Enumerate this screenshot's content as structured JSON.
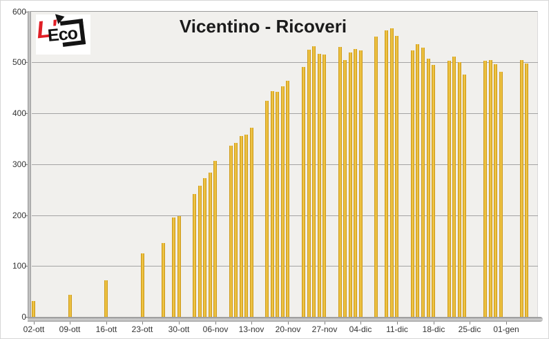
{
  "logo": {
    "prefix": "L'",
    "name": "Eco"
  },
  "colors": {
    "bar_gold": "#e8b32a",
    "bar_gold_light": "#f6d15a",
    "bar_gold_dark": "#c3921b",
    "plot_background": "#f1f0ed",
    "gridline": "#a3a3a3",
    "axis_wall": "#9a9a9a",
    "axis_text": "#333333",
    "title_text": "#1b1b1b",
    "logo_red": "#e01f26",
    "logo_black": "#141414"
  },
  "chart_data": {
    "type": "bar",
    "title": "Vicentino - Ricoveri",
    "xlabel": "",
    "ylabel": "",
    "ylim": [
      0,
      600
    ],
    "y_ticks": [
      0,
      100,
      200,
      300,
      400,
      500,
      600
    ],
    "x_tick_labels": [
      "02-ott",
      "09-ott",
      "16-ott",
      "23-ott",
      "30-ott",
      "06-nov",
      "13-nov",
      "20-nov",
      "27-nov",
      "04-dic",
      "11-dic",
      "18-dic",
      "25-dic",
      "01-gen"
    ],
    "grid": "horizontal",
    "legend_position": "none",
    "points": [
      {
        "date": "02-ott",
        "value": 31
      },
      {
        "date": "09-ott",
        "value": 44
      },
      {
        "date": "16-ott",
        "value": 72
      },
      {
        "date": "23-ott",
        "value": 125
      },
      {
        "date": "27-ott",
        "value": 145
      },
      {
        "date": "29-ott",
        "value": 195
      },
      {
        "date": "30-ott",
        "value": 198
      },
      {
        "date": "02-nov",
        "value": 241
      },
      {
        "date": "03-nov",
        "value": 258
      },
      {
        "date": "04-nov",
        "value": 272
      },
      {
        "date": "05-nov",
        "value": 284
      },
      {
        "date": "06-nov",
        "value": 306
      },
      {
        "date": "09-nov",
        "value": 337
      },
      {
        "date": "10-nov",
        "value": 342
      },
      {
        "date": "11-nov",
        "value": 355
      },
      {
        "date": "12-nov",
        "value": 358
      },
      {
        "date": "13-nov",
        "value": 371
      },
      {
        "date": "16-nov",
        "value": 424
      },
      {
        "date": "17-nov",
        "value": 443
      },
      {
        "date": "18-nov",
        "value": 442
      },
      {
        "date": "19-nov",
        "value": 453
      },
      {
        "date": "20-nov",
        "value": 464
      },
      {
        "date": "23-nov",
        "value": 491
      },
      {
        "date": "24-nov",
        "value": 525
      },
      {
        "date": "25-nov",
        "value": 531
      },
      {
        "date": "26-nov",
        "value": 517
      },
      {
        "date": "27-nov",
        "value": 515
      },
      {
        "date": "30-nov",
        "value": 530
      },
      {
        "date": "01-dic",
        "value": 505
      },
      {
        "date": "02-dic",
        "value": 520
      },
      {
        "date": "03-dic",
        "value": 526
      },
      {
        "date": "04-dic",
        "value": 524
      },
      {
        "date": "07-dic",
        "value": 551
      },
      {
        "date": "09-dic",
        "value": 563
      },
      {
        "date": "10-dic",
        "value": 567
      },
      {
        "date": "11-dic",
        "value": 552
      },
      {
        "date": "14-dic",
        "value": 523
      },
      {
        "date": "15-dic",
        "value": 535
      },
      {
        "date": "16-dic",
        "value": 529
      },
      {
        "date": "17-dic",
        "value": 507
      },
      {
        "date": "18-dic",
        "value": 495
      },
      {
        "date": "21-dic",
        "value": 503
      },
      {
        "date": "22-dic",
        "value": 511
      },
      {
        "date": "23-dic",
        "value": 501
      },
      {
        "date": "24-dic",
        "value": 476
      },
      {
        "date": "28-dic",
        "value": 503
      },
      {
        "date": "29-dic",
        "value": 505
      },
      {
        "date": "30-dic",
        "value": 496
      },
      {
        "date": "31-dic",
        "value": 481
      },
      {
        "date": "04-gen",
        "value": 505
      },
      {
        "date": "05-gen",
        "value": 498
      }
    ]
  }
}
